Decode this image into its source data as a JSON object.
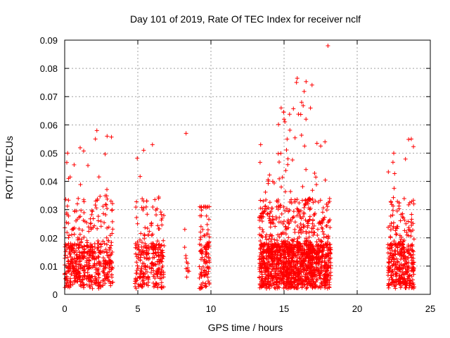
{
  "chart_data": {
    "type": "scatter",
    "title": "Day 101 of 2019, Rate Of TEC Index for receiver nclf",
    "xlabel": "GPS time / hours",
    "ylabel": "ROTI / TECUs",
    "xlim": [
      0,
      25
    ],
    "ylim": [
      0,
      0.09
    ],
    "xticks": [
      0,
      5,
      10,
      15,
      20,
      25
    ],
    "yticks": [
      0,
      0.01,
      0.02,
      0.03,
      0.04,
      0.05,
      0.06,
      0.07,
      0.08,
      0.09
    ],
    "ytick_labels": [
      "0",
      "0.01",
      "0.02",
      "0.03",
      "0.04",
      "0.05",
      "0.06",
      "0.07",
      "0.08",
      "0.09"
    ],
    "grid": true,
    "marker": "+",
    "color": "#ff0000",
    "series": [
      {
        "name": "ROTI",
        "clusters": [
          {
            "x_start": 0.0,
            "x_end": 1.4,
            "y_base": 0.002,
            "y_max": 0.055,
            "n": 260
          },
          {
            "x_start": 1.5,
            "x_end": 2.5,
            "y_base": 0.002,
            "y_max": 0.058,
            "n": 170
          },
          {
            "x_start": 2.6,
            "x_end": 3.3,
            "y_base": 0.003,
            "y_max": 0.056,
            "n": 110
          },
          {
            "x_start": 4.8,
            "x_end": 5.8,
            "y_base": 0.002,
            "y_max": 0.053,
            "n": 140
          },
          {
            "x_start": 5.9,
            "x_end": 6.8,
            "y_base": 0.002,
            "y_max": 0.051,
            "n": 140
          },
          {
            "x_start": 8.2,
            "x_end": 8.5,
            "y_base": 0.004,
            "y_max": 0.023,
            "n": 12
          },
          {
            "x_start": 9.2,
            "x_end": 9.9,
            "y_base": 0.002,
            "y_max": 0.031,
            "n": 110
          },
          {
            "x_start": 13.3,
            "x_end": 14.6,
            "y_base": 0.002,
            "y_max": 0.052,
            "n": 380
          },
          {
            "x_start": 14.6,
            "x_end": 15.9,
            "y_base": 0.002,
            "y_max": 0.066,
            "n": 420
          },
          {
            "x_start": 15.9,
            "x_end": 17.0,
            "y_base": 0.002,
            "y_max": 0.076,
            "n": 400
          },
          {
            "x_start": 17.0,
            "x_end": 18.2,
            "y_base": 0.002,
            "y_max": 0.054,
            "n": 300
          },
          {
            "x_start": 22.1,
            "x_end": 23.0,
            "y_base": 0.002,
            "y_max": 0.05,
            "n": 190
          },
          {
            "x_start": 23.0,
            "x_end": 23.9,
            "y_base": 0.002,
            "y_max": 0.055,
            "n": 190
          }
        ],
        "outliers": [
          {
            "x": 18.0,
            "y": 0.088
          },
          {
            "x": 8.3,
            "y": 0.057
          },
          {
            "x": 15.9,
            "y": 0.0765
          },
          {
            "x": 15.85,
            "y": 0.075
          },
          {
            "x": 14.8,
            "y": 0.066
          },
          {
            "x": 16.2,
            "y": 0.068
          },
          {
            "x": 2.2,
            "y": 0.058
          },
          {
            "x": 2.9,
            "y": 0.056
          },
          {
            "x": 23.7,
            "y": 0.055
          },
          {
            "x": 13.4,
            "y": 0.053
          },
          {
            "x": 6.0,
            "y": 0.053
          },
          {
            "x": 0.2,
            "y": 0.05
          },
          {
            "x": 22.5,
            "y": 0.05
          },
          {
            "x": 17.8,
            "y": 0.054
          },
          {
            "x": 16.5,
            "y": 0.062
          },
          {
            "x": 15.0,
            "y": 0.062
          },
          {
            "x": 2.1,
            "y": 0.055
          },
          {
            "x": 5.4,
            "y": 0.051
          },
          {
            "x": 9.5,
            "y": 0.031
          }
        ]
      }
    ]
  }
}
